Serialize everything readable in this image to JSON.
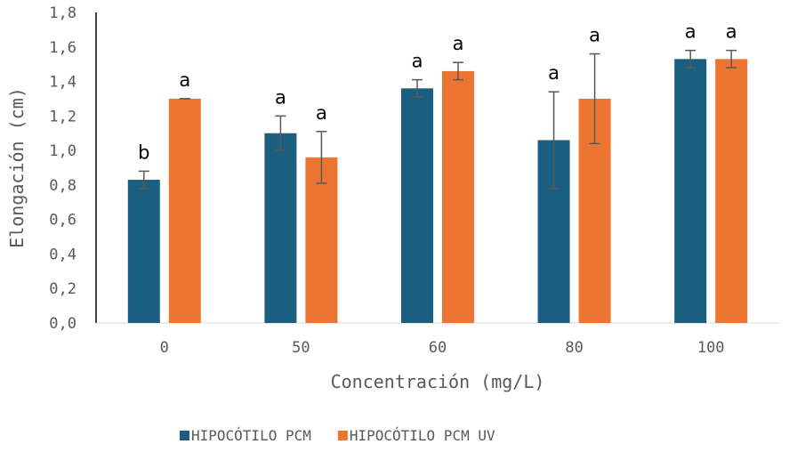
{
  "chart_data": {
    "type": "bar",
    "categories": [
      "0",
      "50",
      "60",
      "80",
      "100"
    ],
    "series": [
      {
        "name": "HIPOCÓTILO PCM",
        "color": "#1a5e80",
        "values": [
          0.83,
          1.1,
          1.36,
          1.06,
          1.53
        ],
        "errors": [
          0.05,
          0.1,
          0.05,
          0.28,
          0.05
        ],
        "labels": [
          "b",
          "a",
          "a",
          "a",
          "a"
        ]
      },
      {
        "name": "HIPOCÓTILO PCM UV",
        "color": "#ed7532",
        "values": [
          1.3,
          0.96,
          1.46,
          1.3,
          1.53
        ],
        "errors": [
          0.0,
          0.15,
          0.05,
          0.26,
          0.05
        ],
        "labels": [
          "a",
          "a",
          "a",
          "a",
          "a"
        ]
      }
    ],
    "xlabel": "Concentración (mg/L)",
    "ylabel": "Elongación (cm)",
    "ylim": [
      0,
      1.8
    ],
    "yticks": [
      "0,0",
      "0,2",
      "0,4",
      "0,6",
      "0,8",
      "1,0",
      "1,2",
      "1,4",
      "1,6",
      "1,8"
    ],
    "grid": false,
    "legend_position": "bottom"
  }
}
